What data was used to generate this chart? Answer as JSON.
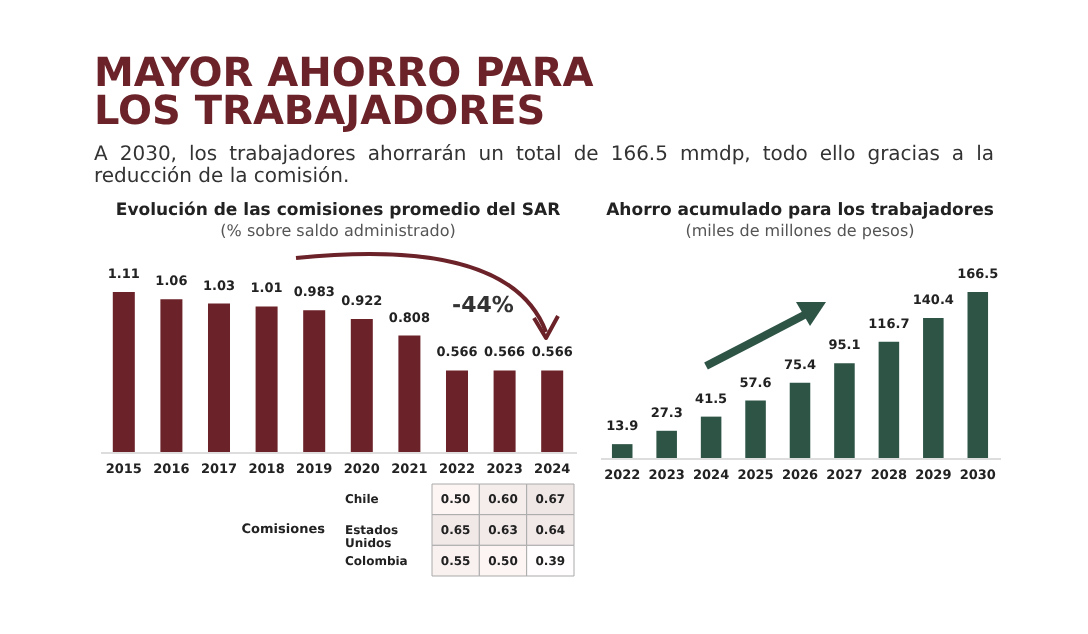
{
  "chart_data": [
    {
      "type": "other",
      "title": "MAYOR AHORRO PARA LOS TRABAJADORES",
      "annotations": [
        "A 2030, los trabajadores ahorrarán un total de 166.5 mmdp, todo ello gracias a la reducción de la comisión."
      ]
    },
    {
      "type": "bar",
      "title": "Evolución de las comisiones promedio del SAR",
      "subtitle": "(% sobre saldo administrado)",
      "categories": [
        "2015",
        "2016",
        "2017",
        "2018",
        "2019",
        "2020",
        "2021",
        "2022",
        "2023",
        "2024"
      ],
      "values": [
        1.11,
        1.06,
        1.03,
        1.01,
        0.983,
        0.922,
        0.808,
        0.566,
        0.566,
        0.566
      ],
      "color": "#6b2228",
      "data_labels": true,
      "annotations": [
        "-44%"
      ]
    },
    {
      "type": "heatmap",
      "ylabel": "Comisiones",
      "categories": [
        "2022",
        "2023",
        "2024"
      ],
      "y_categories": [
        "Chile",
        "Estados Unidos",
        "Colombia"
      ],
      "tick_labels": "y",
      "cells": [
        [
          0.5,
          0.6,
          0.67
        ],
        [
          0.65,
          0.63,
          0.64
        ],
        [
          0.55,
          0.5,
          0.39
        ]
      ],
      "cell_labels": [
        [
          "0.50",
          "0.60",
          "0.67"
        ],
        [
          "0.65",
          "0.63",
          "0.64"
        ],
        [
          "0.55",
          "0.50",
          "0.39"
        ]
      ]
    },
    {
      "type": "bar",
      "title": "Ahorro acumulado para los trabajadores",
      "subtitle": "(miles de millones de pesos)",
      "categories": [
        "2022",
        "2023",
        "2024",
        "2025",
        "2026",
        "2027",
        "2028",
        "2029",
        "2030"
      ],
      "values": [
        13.9,
        27.3,
        41.5,
        57.6,
        75.4,
        95.1,
        116.7,
        140.4,
        166.5
      ],
      "color": "#2e5446",
      "data_labels": true
    }
  ]
}
